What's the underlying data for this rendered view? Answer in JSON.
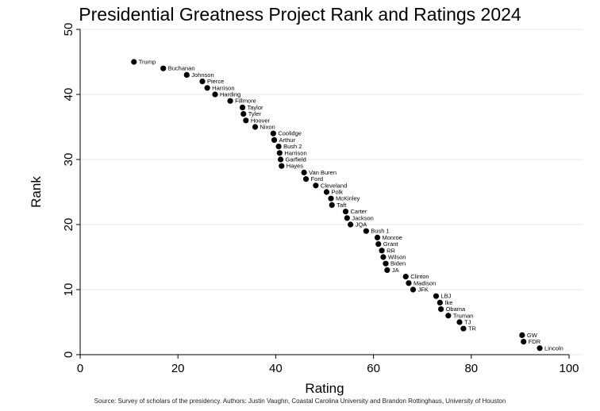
{
  "chart_data": {
    "type": "scatter",
    "title": "Presidential Greatness Project Rank and Ratings 2024",
    "xlabel": "Rating",
    "ylabel": "Rank",
    "xlim": [
      0,
      100
    ],
    "ylim": [
      0,
      50
    ],
    "xticks": [
      "0",
      "20",
      "40",
      "60",
      "80",
      "100"
    ],
    "yticks": [
      "0",
      "10",
      "20",
      "30",
      "40",
      "50"
    ],
    "grid": "horizontal",
    "points": [
      {
        "label": "Trump",
        "x": 11,
        "y": 45
      },
      {
        "label": "Buchanan",
        "x": 17,
        "y": 44
      },
      {
        "label": "Johnson",
        "x": 21.8,
        "y": 43
      },
      {
        "label": "Pierce",
        "x": 25,
        "y": 42
      },
      {
        "label": "Harrison",
        "x": 26,
        "y": 41
      },
      {
        "label": "Harding",
        "x": 27.6,
        "y": 40
      },
      {
        "label": "Fillmore",
        "x": 30.7,
        "y": 39
      },
      {
        "label": "Taylor",
        "x": 33.2,
        "y": 38
      },
      {
        "label": "Tyler",
        "x": 33.4,
        "y": 37
      },
      {
        "label": "Hoover",
        "x": 33.9,
        "y": 36
      },
      {
        "label": "Nixon",
        "x": 35.8,
        "y": 35
      },
      {
        "label": "Coolidge",
        "x": 39.5,
        "y": 34
      },
      {
        "label": "Arthur",
        "x": 39.7,
        "y": 33
      },
      {
        "label": "Bush 2",
        "x": 40.6,
        "y": 32
      },
      {
        "label": "Harrison",
        "x": 40.8,
        "y": 31
      },
      {
        "label": "Garfield",
        "x": 41,
        "y": 30
      },
      {
        "label": "Hayes",
        "x": 41.2,
        "y": 29
      },
      {
        "label": "Van Buren",
        "x": 45.8,
        "y": 28
      },
      {
        "label": "Ford",
        "x": 46.2,
        "y": 27
      },
      {
        "label": "Cleveland",
        "x": 48.2,
        "y": 26
      },
      {
        "label": "Polk",
        "x": 50.4,
        "y": 25
      },
      {
        "label": "McKinley",
        "x": 51.3,
        "y": 24
      },
      {
        "label": "Taft",
        "x": 51.5,
        "y": 23
      },
      {
        "label": "Carter",
        "x": 54.3,
        "y": 22
      },
      {
        "label": "Jackson",
        "x": 54.6,
        "y": 21
      },
      {
        "label": "JQA",
        "x": 55.3,
        "y": 20
      },
      {
        "label": "Bush 1",
        "x": 58.5,
        "y": 19
      },
      {
        "label": "Monroe",
        "x": 60.8,
        "y": 18
      },
      {
        "label": "Grant",
        "x": 61,
        "y": 17
      },
      {
        "label": "RR",
        "x": 61.7,
        "y": 16
      },
      {
        "label": "Wilson",
        "x": 62,
        "y": 15
      },
      {
        "label": "Biden",
        "x": 62.5,
        "y": 14
      },
      {
        "label": "JA",
        "x": 62.8,
        "y": 13
      },
      {
        "label": "Clinton",
        "x": 66.6,
        "y": 12
      },
      {
        "label": "Madison",
        "x": 67.2,
        "y": 11
      },
      {
        "label": "JFK",
        "x": 68.1,
        "y": 10
      },
      {
        "label": "LBJ",
        "x": 72.8,
        "y": 9
      },
      {
        "label": "Ike",
        "x": 73.6,
        "y": 8
      },
      {
        "label": "Obama",
        "x": 73.8,
        "y": 7
      },
      {
        "label": "Truman",
        "x": 75.3,
        "y": 6
      },
      {
        "label": "TJ",
        "x": 77.6,
        "y": 5
      },
      {
        "label": "TR",
        "x": 78.4,
        "y": 4
      },
      {
        "label": "GW",
        "x": 90.4,
        "y": 3
      },
      {
        "label": "FDR",
        "x": 90.7,
        "y": 2
      },
      {
        "label": "Lincoln",
        "x": 94,
        "y": 1
      }
    ]
  },
  "source": "Source: Survey of scholars of the presidency.  Authors: Justin Vaughn, Coastal Carolina University and Brandon Rottinghaus, University of Houston",
  "colors": {
    "marker": "#000000",
    "grid": "#dde7ec",
    "axis": "#000000"
  }
}
